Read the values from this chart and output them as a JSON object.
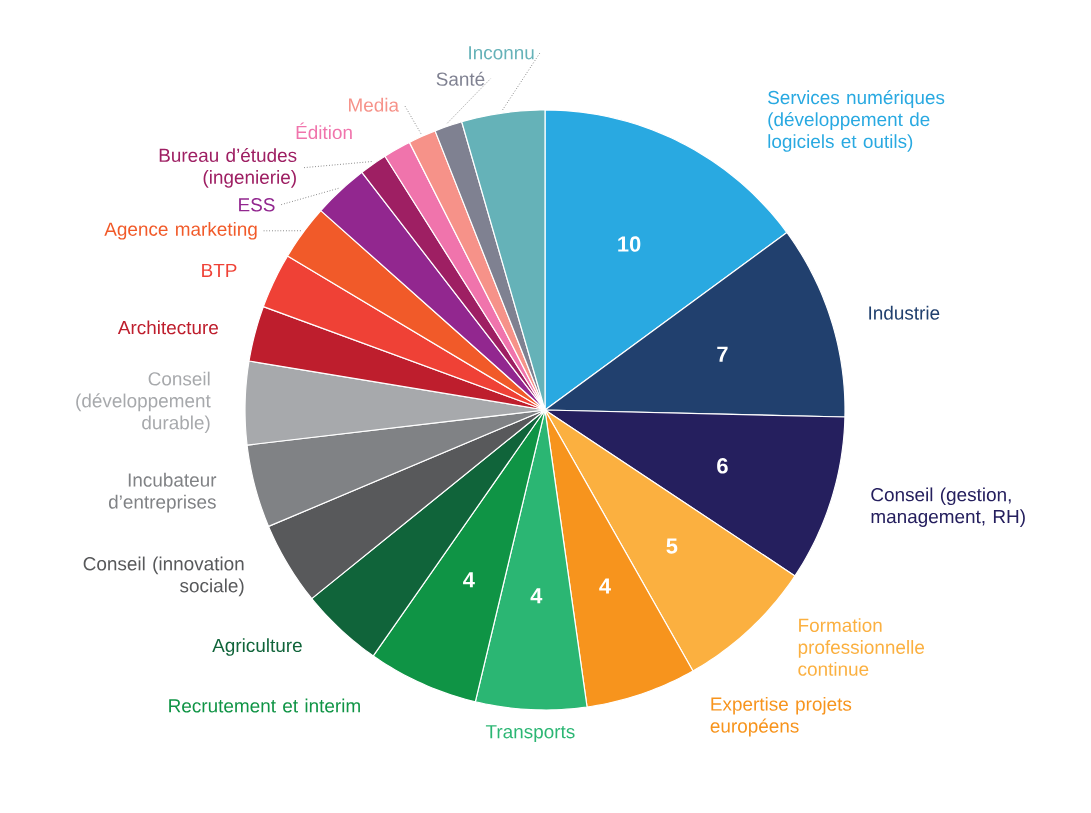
{
  "chart_data": {
    "type": "pie",
    "categories": [
      "Services numériques (développement de logiciels et outils)",
      "Industrie",
      "Conseil (gestion, management, RH)",
      "Formation professionnelle continue",
      "Expertise projets européens",
      "Transports",
      "Recrutement et interim",
      "Agriculture",
      "Conseil (innovation sociale)",
      "Incubateur d’entreprises",
      "Conseil (développement durable)",
      "Architecture",
      "BTP",
      "Agence marketing",
      "ESS",
      "Bureau d’études (ingenierie)",
      "Édition",
      "Media",
      "Santé",
      "Inconnu"
    ],
    "values": [
      10,
      7,
      6,
      5,
      4,
      4,
      4,
      3,
      3,
      3,
      3,
      2,
      2,
      2,
      2,
      1,
      1,
      1,
      1,
      3
    ],
    "value_labels": [
      "10",
      "7",
      "6",
      "5",
      "4",
      "4",
      "4",
      null,
      null,
      null,
      null,
      null,
      null,
      null,
      null,
      null,
      null,
      null,
      null,
      null
    ],
    "colors": [
      "#29a9e1",
      "#21406e",
      "#251f5e",
      "#fbb040",
      "#f7941d",
      "#2bb673",
      "#0f9445",
      "#10643a",
      "#58595b",
      "#808285",
      "#a7a9ac",
      "#be1e2d",
      "#ef4136",
      "#f15a29",
      "#92278f",
      "#9e1f63",
      "#f074ac",
      "#f69289",
      "#7f8191",
      "#65b2b8"
    ]
  }
}
